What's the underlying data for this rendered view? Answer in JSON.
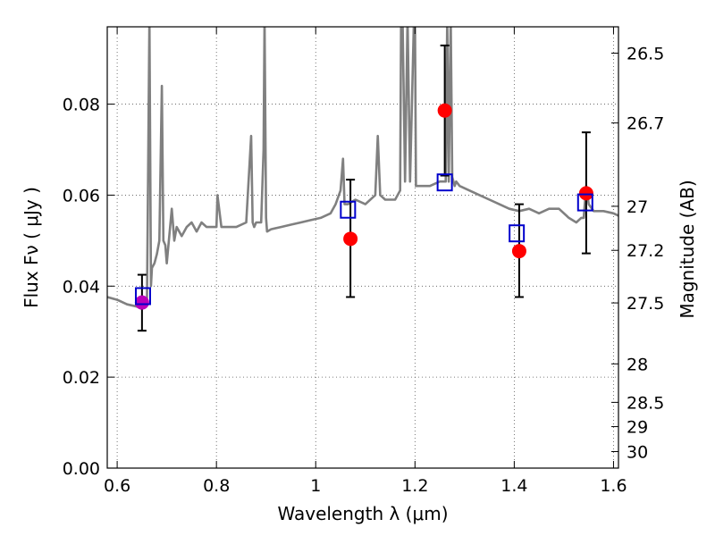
{
  "chart_data": {
    "type": "scatter",
    "xlabel": "Wavelength  λ (μm)",
    "ylabel": "Flux  Fν  ( μJy )",
    "y2label": "Magnitude (AB)",
    "xlim": [
      0.58,
      1.61
    ],
    "ylim": [
      0.0,
      0.097
    ],
    "grid": true,
    "x_ticks": [
      {
        "value": 0.6,
        "label": "0.6"
      },
      {
        "value": 0.8,
        "label": "0.8"
      },
      {
        "value": 1.0,
        "label": "1"
      },
      {
        "value": 1.2,
        "label": "1.2"
      },
      {
        "value": 1.4,
        "label": "1.4"
      },
      {
        "value": 1.6,
        "label": "1.6"
      }
    ],
    "y_ticks": [
      {
        "value": 0.0,
        "label": "0.00"
      },
      {
        "value": 0.02,
        "label": "0.02"
      },
      {
        "value": 0.04,
        "label": "0.04"
      },
      {
        "value": 0.06,
        "label": "0.06"
      },
      {
        "value": 0.08,
        "label": "0.08"
      }
    ],
    "y2_ticks": [
      {
        "value": 26.5,
        "label": "26.5"
      },
      {
        "value": 26.7,
        "label": "26.7"
      },
      {
        "value": 27.0,
        "label": "27"
      },
      {
        "value": 27.2,
        "label": "27.2"
      },
      {
        "value": 27.5,
        "label": "27.5"
      },
      {
        "value": 28.0,
        "label": "28"
      },
      {
        "value": 28.5,
        "label": "28.5"
      },
      {
        "value": 29.0,
        "label": "29"
      },
      {
        "value": 30.0,
        "label": "30"
      }
    ],
    "colors": {
      "spectrum": "#808080",
      "observed": "#ff0000",
      "observed_optical": "#bb00bb",
      "model": "#0000cc",
      "errorbar": "#000000"
    },
    "model_spectrum": {
      "x": [
        0.58,
        0.6,
        0.62,
        0.64,
        0.65,
        0.66,
        0.662,
        0.665,
        0.668,
        0.67,
        0.675,
        0.68,
        0.685,
        0.69,
        0.693,
        0.697,
        0.7,
        0.71,
        0.715,
        0.72,
        0.73,
        0.74,
        0.75,
        0.76,
        0.77,
        0.78,
        0.79,
        0.8,
        0.802,
        0.81,
        0.82,
        0.84,
        0.86,
        0.87,
        0.873,
        0.876,
        0.88,
        0.89,
        0.895,
        0.897,
        0.9,
        0.902,
        0.91,
        0.93,
        0.95,
        0.97,
        0.99,
        1.01,
        1.03,
        1.04,
        1.05,
        1.055,
        1.058,
        1.061,
        1.065,
        1.08,
        1.1,
        1.12,
        1.125,
        1.13,
        1.14,
        1.16,
        1.17,
        1.172,
        1.175,
        1.18,
        1.185,
        1.19,
        1.198,
        1.2,
        1.202,
        1.205,
        1.21,
        1.23,
        1.25,
        1.262,
        1.265,
        1.268,
        1.272,
        1.275,
        1.28,
        1.283,
        1.29,
        1.31,
        1.33,
        1.35,
        1.37,
        1.39,
        1.41,
        1.43,
        1.45,
        1.47,
        1.49,
        1.51,
        1.525,
        1.535,
        1.54,
        1.545,
        1.55,
        1.56,
        1.58,
        1.6,
        1.61
      ],
      "y": [
        0.0376,
        0.037,
        0.036,
        0.0355,
        0.035,
        0.036,
        0.06,
        0.099,
        0.04,
        0.044,
        0.045,
        0.047,
        0.05,
        0.084,
        0.05,
        0.049,
        0.045,
        0.057,
        0.05,
        0.053,
        0.051,
        0.053,
        0.054,
        0.052,
        0.054,
        0.053,
        0.053,
        0.053,
        0.06,
        0.053,
        0.053,
        0.053,
        0.054,
        0.073,
        0.054,
        0.053,
        0.054,
        0.054,
        0.07,
        0.099,
        0.055,
        0.052,
        0.0525,
        0.053,
        0.0535,
        0.054,
        0.0545,
        0.055,
        0.056,
        0.058,
        0.061,
        0.068,
        0.058,
        0.058,
        0.058,
        0.059,
        0.058,
        0.06,
        0.073,
        0.06,
        0.059,
        0.059,
        0.061,
        0.099,
        0.099,
        0.063,
        0.099,
        0.063,
        0.099,
        0.099,
        0.062,
        0.062,
        0.062,
        0.062,
        0.063,
        0.063,
        0.099,
        0.063,
        0.099,
        0.064,
        0.062,
        0.063,
        0.062,
        0.061,
        0.06,
        0.059,
        0.058,
        0.057,
        0.0565,
        0.057,
        0.056,
        0.057,
        0.057,
        0.055,
        0.054,
        0.055,
        0.055,
        0.062,
        0.058,
        0.0565,
        0.0565,
        0.056,
        0.0555
      ]
    },
    "observed": [
      {
        "x": 0.65,
        "y": 0.0364,
        "yerr_low": 0.0302,
        "yerr_high": 0.0425,
        "color": "observed_optical"
      },
      {
        "x": 1.07,
        "y": 0.0504,
        "yerr_low": 0.0376,
        "yerr_high": 0.0634,
        "color": "observed"
      },
      {
        "x": 1.26,
        "y": 0.0786,
        "yerr_low": 0.0643,
        "yerr_high": 0.0929,
        "color": "observed"
      },
      {
        "x": 1.41,
        "y": 0.0477,
        "yerr_low": 0.0376,
        "yerr_high": 0.058,
        "color": "observed"
      },
      {
        "x": 1.545,
        "y": 0.0604,
        "yerr_low": 0.0472,
        "yerr_high": 0.0738,
        "color": "observed"
      }
    ],
    "model_photometry": [
      {
        "x": 0.652,
        "y": 0.0378
      },
      {
        "x": 1.065,
        "y": 0.0568
      },
      {
        "x": 1.26,
        "y": 0.0628
      },
      {
        "x": 1.405,
        "y": 0.0516
      },
      {
        "x": 1.543,
        "y": 0.0584
      }
    ]
  }
}
